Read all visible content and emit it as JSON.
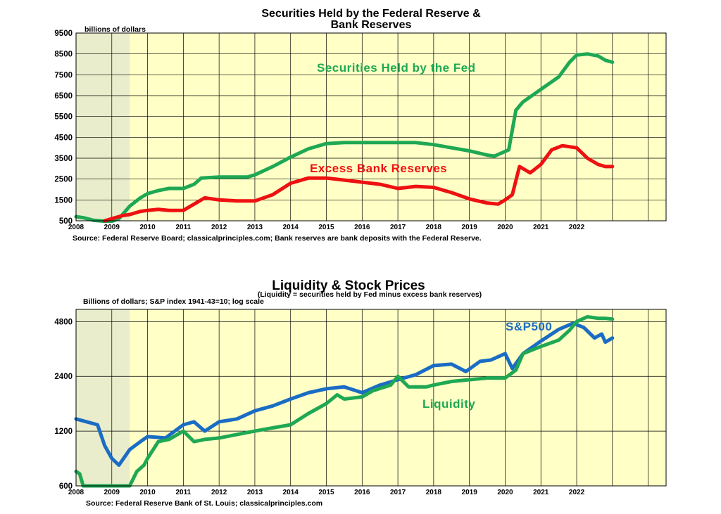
{
  "colors": {
    "plot_bg": "#FFFFC6",
    "shade": "#E9EDCB",
    "green": "#1FA854",
    "red": "#EE1111",
    "blue": "#1A6CC4",
    "grid": "#000000"
  },
  "chart_data": [
    {
      "type": "line",
      "title_line1": "Securities Held by the Federal Reserve &",
      "title_line2": "Bank Reserves",
      "unit_note": "billions of dollars",
      "source": "Source: Federal Reserve  Board; classicalprinciples.com; Bank reserves are bank deposits with the Federal Reserve.",
      "y_scale": "linear",
      "ylim": [
        500,
        9500
      ],
      "yticks": [
        "500",
        "1500",
        "2500",
        "3500",
        "4500",
        "5500",
        "6500",
        "7500",
        "8500",
        "9500"
      ],
      "xlim": [
        2008,
        2024.5
      ],
      "xticks": [
        "2008",
        "2009",
        "2010",
        "2011",
        "2012",
        "2013",
        "2014",
        "2015",
        "2016",
        "2017",
        "2018",
        "2019",
        "2020",
        "2021",
        "2022"
      ],
      "recession_shading": [
        2008,
        2009.5
      ],
      "grid": true,
      "series": [
        {
          "name": "Securities Held by the Fed",
          "color_key": "green",
          "points": [
            [
              2008.0,
              700
            ],
            [
              2008.2,
              650
            ],
            [
              2008.5,
              520
            ],
            [
              2008.8,
              480
            ],
            [
              2009.0,
              480
            ],
            [
              2009.2,
              600
            ],
            [
              2009.5,
              1200
            ],
            [
              2009.8,
              1600
            ],
            [
              2010.0,
              1800
            ],
            [
              2010.3,
              1950
            ],
            [
              2010.6,
              2050
            ],
            [
              2011.0,
              2050
            ],
            [
              2011.3,
              2250
            ],
            [
              2011.5,
              2550
            ],
            [
              2012.0,
              2600
            ],
            [
              2012.5,
              2600
            ],
            [
              2012.8,
              2600
            ],
            [
              2013.0,
              2700
            ],
            [
              2013.5,
              3100
            ],
            [
              2014.0,
              3550
            ],
            [
              2014.5,
              3950
            ],
            [
              2015.0,
              4200
            ],
            [
              2015.5,
              4250
            ],
            [
              2016.0,
              4250
            ],
            [
              2016.5,
              4250
            ],
            [
              2017.0,
              4250
            ],
            [
              2017.5,
              4250
            ],
            [
              2018.0,
              4150
            ],
            [
              2018.5,
              4000
            ],
            [
              2019.0,
              3850
            ],
            [
              2019.5,
              3650
            ],
            [
              2019.7,
              3600
            ],
            [
              2019.9,
              3750
            ],
            [
              2020.1,
              3900
            ],
            [
              2020.3,
              5800
            ],
            [
              2020.5,
              6200
            ],
            [
              2021.0,
              6800
            ],
            [
              2021.5,
              7400
            ],
            [
              2021.8,
              8100
            ],
            [
              2022.0,
              8450
            ],
            [
              2022.3,
              8500
            ],
            [
              2022.6,
              8400
            ],
            [
              2022.8,
              8200
            ],
            [
              2023.0,
              8100
            ]
          ]
        },
        {
          "name": "Excess Bank Reserves",
          "color_key": "red",
          "points": [
            [
              2008.8,
              500
            ],
            [
              2009.0,
              600
            ],
            [
              2009.3,
              750
            ],
            [
              2009.5,
              800
            ],
            [
              2009.8,
              950
            ],
            [
              2010.0,
              1000
            ],
            [
              2010.3,
              1050
            ],
            [
              2010.6,
              1000
            ],
            [
              2011.0,
              1000
            ],
            [
              2011.3,
              1300
            ],
            [
              2011.6,
              1600
            ],
            [
              2012.0,
              1500
            ],
            [
              2012.5,
              1450
            ],
            [
              2013.0,
              1450
            ],
            [
              2013.5,
              1750
            ],
            [
              2014.0,
              2300
            ],
            [
              2014.5,
              2550
            ],
            [
              2015.0,
              2550
            ],
            [
              2015.5,
              2450
            ],
            [
              2016.0,
              2350
            ],
            [
              2016.5,
              2250
            ],
            [
              2017.0,
              2050
            ],
            [
              2017.5,
              2150
            ],
            [
              2018.0,
              2100
            ],
            [
              2018.5,
              1850
            ],
            [
              2019.0,
              1550
            ],
            [
              2019.5,
              1350
            ],
            [
              2019.8,
              1300
            ],
            [
              2020.0,
              1500
            ],
            [
              2020.2,
              1750
            ],
            [
              2020.4,
              3100
            ],
            [
              2020.7,
              2800
            ],
            [
              2021.0,
              3200
            ],
            [
              2021.3,
              3900
            ],
            [
              2021.6,
              4100
            ],
            [
              2022.0,
              4000
            ],
            [
              2022.3,
              3500
            ],
            [
              2022.6,
              3200
            ],
            [
              2022.8,
              3100
            ],
            [
              2023.0,
              3100
            ]
          ]
        }
      ]
    },
    {
      "type": "line",
      "title": "Liquidity & Stock Prices",
      "subtitle": "(Liquidity = securities held by Fed minus excess bank reserves)",
      "unit_note": "Billions of dollars; S&P index 1941-43=10; log scale",
      "source": "Source: Federal Reserve Bank of St. Louis; classicalprinciples.com",
      "y_scale": "log",
      "ylim": [
        600,
        5600
      ],
      "yticks": [
        600,
        1200,
        2400,
        4800
      ],
      "ytick_labels": [
        "600",
        "1200",
        "2400",
        "4800"
      ],
      "xlim": [
        2008,
        2024.5
      ],
      "xticks": [
        "2008",
        "2009",
        "2010",
        "2011",
        "2012",
        "2013",
        "2014",
        "2015",
        "2016",
        "2017",
        "2018",
        "2019",
        "2020",
        "2021",
        "2022"
      ],
      "recession_shading": [
        2008,
        2009.5
      ],
      "grid": true,
      "series": [
        {
          "name": "S&P500",
          "color_key": "blue",
          "points": [
            [
              2008.0,
              1400
            ],
            [
              2008.3,
              1350
            ],
            [
              2008.6,
              1300
            ],
            [
              2008.8,
              1000
            ],
            [
              2009.0,
              850
            ],
            [
              2009.2,
              780
            ],
            [
              2009.5,
              950
            ],
            [
              2009.8,
              1050
            ],
            [
              2010.0,
              1120
            ],
            [
              2010.5,
              1100
            ],
            [
              2011.0,
              1300
            ],
            [
              2011.3,
              1350
            ],
            [
              2011.6,
              1200
            ],
            [
              2012.0,
              1350
            ],
            [
              2012.5,
              1400
            ],
            [
              2013.0,
              1550
            ],
            [
              2013.5,
              1650
            ],
            [
              2014.0,
              1800
            ],
            [
              2014.5,
              1950
            ],
            [
              2015.0,
              2050
            ],
            [
              2015.5,
              2100
            ],
            [
              2016.0,
              1950
            ],
            [
              2016.5,
              2150
            ],
            [
              2017.0,
              2300
            ],
            [
              2017.5,
              2450
            ],
            [
              2018.0,
              2750
            ],
            [
              2018.5,
              2800
            ],
            [
              2018.9,
              2550
            ],
            [
              2019.3,
              2900
            ],
            [
              2019.6,
              2950
            ],
            [
              2020.0,
              3200
            ],
            [
              2020.2,
              2650
            ],
            [
              2020.5,
              3200
            ],
            [
              2021.0,
              3750
            ],
            [
              2021.5,
              4350
            ],
            [
              2021.9,
              4700
            ],
            [
              2022.2,
              4450
            ],
            [
              2022.5,
              3900
            ],
            [
              2022.7,
              4100
            ],
            [
              2022.8,
              3700
            ],
            [
              2023.0,
              3900
            ]
          ]
        },
        {
          "name": "Liquidity",
          "color_key": "green",
          "points": [
            [
              2008.0,
              720
            ],
            [
              2008.1,
              700
            ],
            [
              2008.2,
              600
            ],
            [
              2009.5,
              600
            ],
            [
              2009.7,
              720
            ],
            [
              2009.9,
              780
            ],
            [
              2010.0,
              850
            ],
            [
              2010.3,
              1050
            ],
            [
              2010.6,
              1080
            ],
            [
              2011.0,
              1200
            ],
            [
              2011.3,
              1050
            ],
            [
              2011.6,
              1080
            ],
            [
              2012.0,
              1100
            ],
            [
              2012.5,
              1150
            ],
            [
              2013.0,
              1200
            ],
            [
              2013.5,
              1250
            ],
            [
              2014.0,
              1300
            ],
            [
              2014.5,
              1500
            ],
            [
              2015.0,
              1700
            ],
            [
              2015.3,
              1900
            ],
            [
              2015.5,
              1800
            ],
            [
              2016.0,
              1850
            ],
            [
              2016.3,
              2000
            ],
            [
              2016.8,
              2150
            ],
            [
              2017.0,
              2400
            ],
            [
              2017.3,
              2100
            ],
            [
              2017.8,
              2100
            ],
            [
              2018.0,
              2150
            ],
            [
              2018.5,
              2250
            ],
            [
              2019.0,
              2300
            ],
            [
              2019.5,
              2350
            ],
            [
              2020.0,
              2350
            ],
            [
              2020.3,
              2600
            ],
            [
              2020.5,
              3200
            ],
            [
              2021.0,
              3500
            ],
            [
              2021.5,
              3800
            ],
            [
              2021.8,
              4300
            ],
            [
              2022.0,
              4800
            ],
            [
              2022.3,
              5100
            ],
            [
              2022.6,
              5000
            ],
            [
              2022.8,
              5000
            ],
            [
              2023.0,
              4950
            ]
          ]
        }
      ]
    }
  ]
}
